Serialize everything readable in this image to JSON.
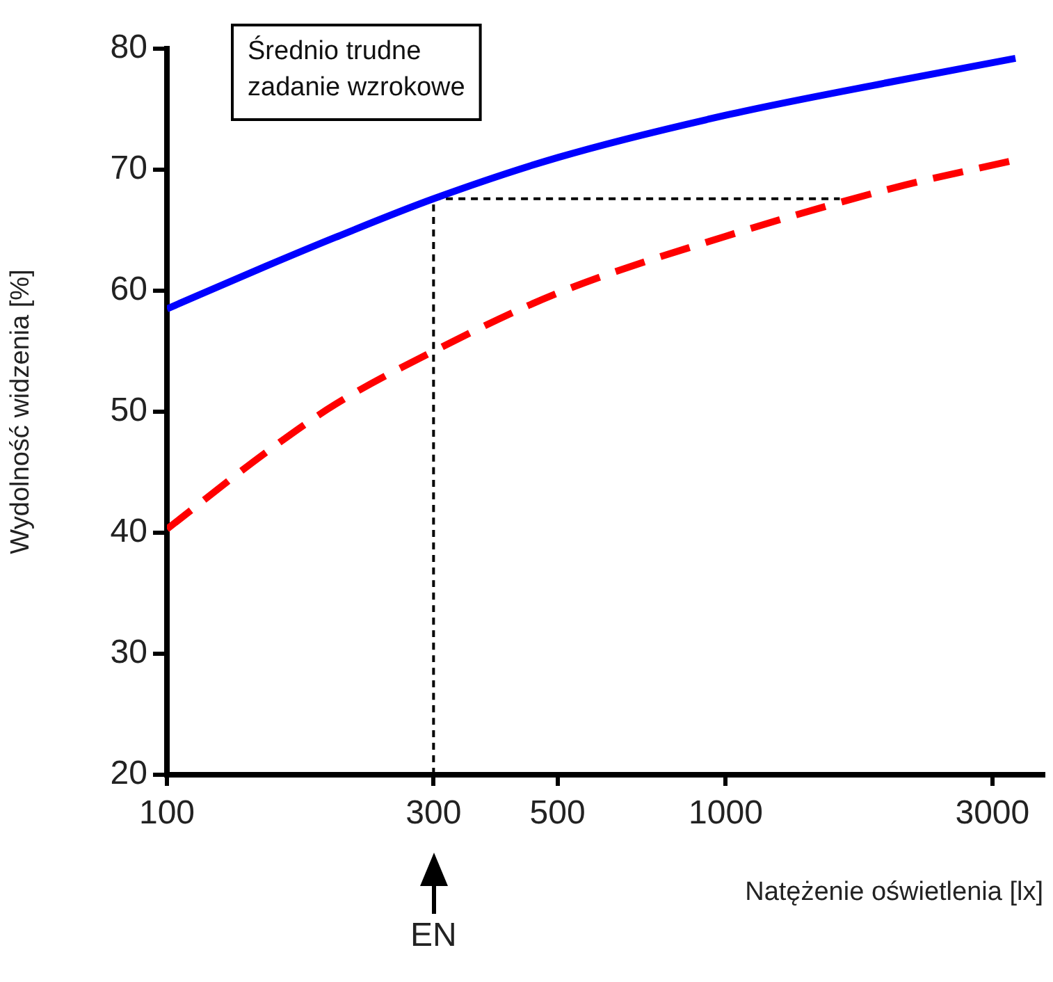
{
  "chart_data": {
    "type": "line",
    "xlabel": "Natężenie oświetlenia [lx]",
    "ylabel": "Wydolność widzenia [%]",
    "log": "x",
    "xlim": [
      100,
      3700
    ],
    "xticks": [
      100,
      300,
      500,
      1000,
      3000
    ],
    "ylim": [
      20,
      80
    ],
    "yticks": [
      20,
      30,
      40,
      50,
      60,
      70,
      80
    ],
    "grid": false,
    "legend": false,
    "marker": "none",
    "series": [
      {
        "color": "#0000ff",
        "line_style": "solid",
        "x": [
          100,
          150,
          200,
          300,
          500,
          1000,
          2000,
          3300
        ],
        "values": [
          58.5,
          62,
          64.4,
          67.6,
          71,
          74.5,
          77.3,
          79.2
        ]
      },
      {
        "color": "#ff0000",
        "line_style": "dashed",
        "x": [
          100,
          150,
          200,
          300,
          500,
          1000,
          2000,
          3300
        ],
        "values": [
          40.3,
          46.6,
          50.6,
          55,
          59.8,
          64.5,
          68.5,
          70.8
        ]
      },
      {
        "color": "#000000",
        "line_style": "dotted",
        "x": [
          300,
          300,
          1600
        ],
        "values": [
          20,
          67.6,
          67.6
        ]
      }
    ],
    "annotations": [
      "Średnio trudne\nzadanie wzrokowe",
      {
        "text": "EN",
        "x": 300
      }
    ]
  }
}
